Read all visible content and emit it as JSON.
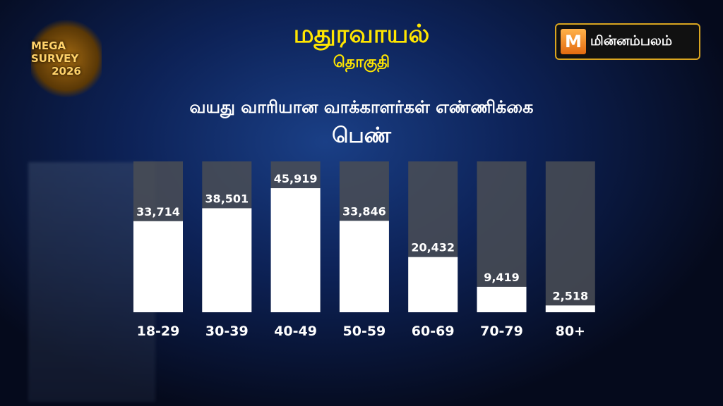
{
  "header": {
    "constituency": "மதுரவாயல்",
    "subtitle": "தொகுதி",
    "chart_title": "வயது வாரியான வாக்காளர்கள் எண்ணிக்கை",
    "gender": "பெண்"
  },
  "badge": {
    "line1": "MEGA SURVEY",
    "line2": "2026"
  },
  "logo": {
    "text": "மின்னம்பலம்",
    "icon": "M"
  },
  "colors": {
    "title": "#ffe600",
    "bar": "#ffffff",
    "track": "#4a4d55"
  },
  "chart_data": {
    "type": "bar",
    "categories": [
      "18-29",
      "30-39",
      "40-49",
      "50-59",
      "60-69",
      "70-79",
      "80+"
    ],
    "values": [
      33714,
      38501,
      45919,
      33846,
      20432,
      9419,
      2518
    ],
    "labels": [
      "33,714",
      "38,501",
      "45,919",
      "33,846",
      "20,432",
      "9,419",
      "2,518"
    ],
    "title": "வயது வாரியான வாக்காளர்கள் எண்ணிக்கை",
    "grid": false
  }
}
